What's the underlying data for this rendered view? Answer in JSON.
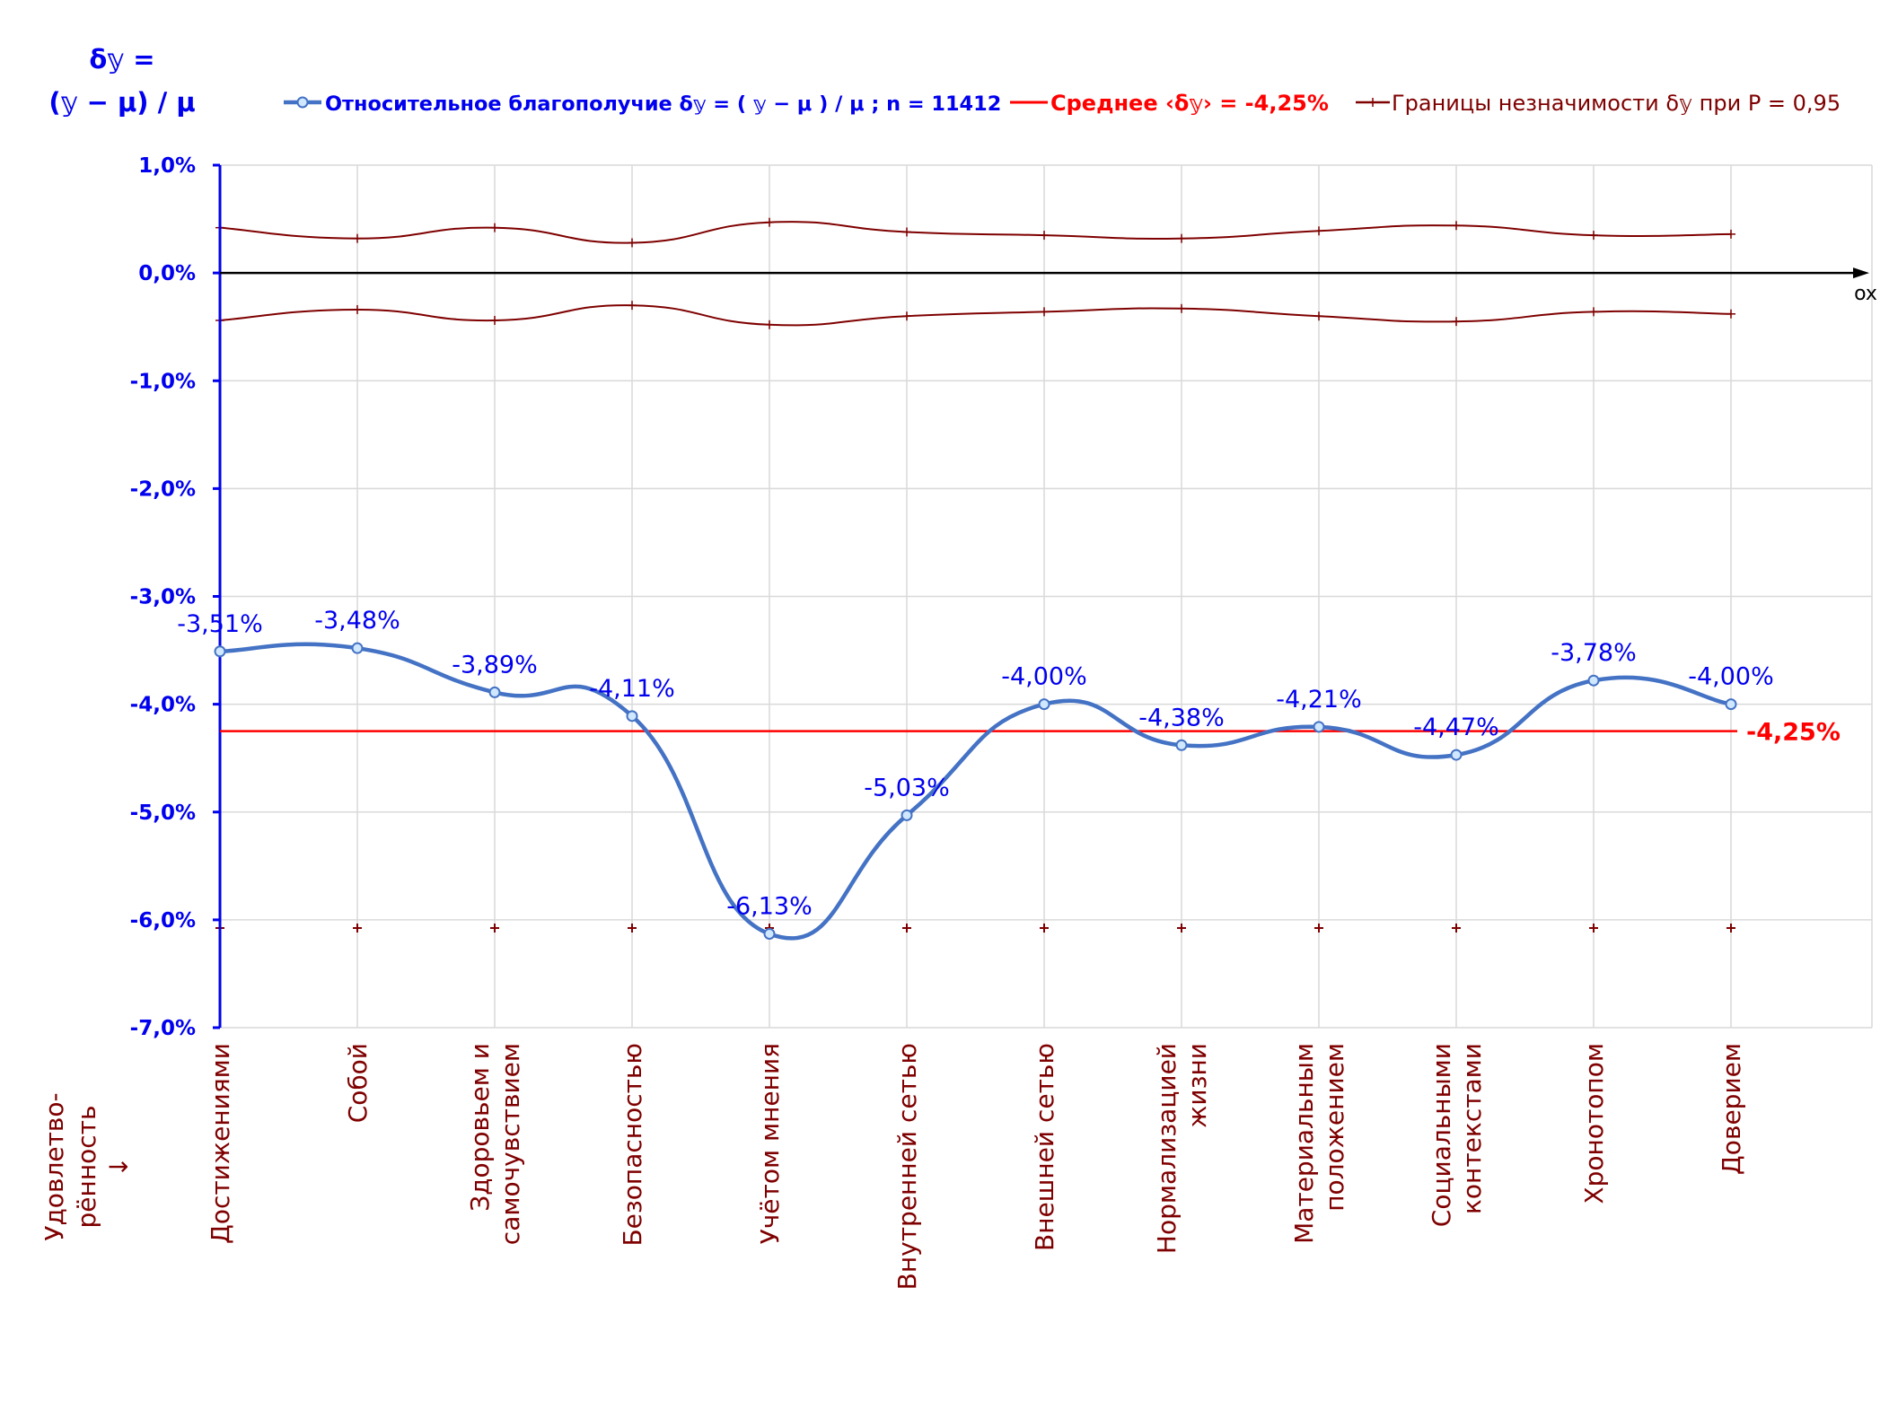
{
  "chart_data": {
    "type": "line",
    "ylabel_line1": "δ𝕪 =",
    "ylabel_line2": "(𝕪 − μ) / μ",
    "xlabel": "Удовлетво-\nрённость\n↓",
    "x_axis_name": "ox",
    "categories": [
      "Достижениями",
      "Собой",
      "Здоровьем и\nсамочувствием",
      "Безопасностью",
      "Учётом мнения",
      "Внутренней сетью",
      "Внешней сетью",
      "Нормализацией\nжизни",
      "Материальным\nположением",
      "Социальными\nконтекстами",
      "Хронотопом",
      "Доверием"
    ],
    "ylim": [
      -7.0,
      1.0
    ],
    "yticks": [
      1.0,
      0.0,
      -1.0,
      -2.0,
      -3.0,
      -4.0,
      -5.0,
      -6.0,
      -7.0
    ],
    "ytick_labels": [
      "1,0%",
      "0,0%",
      "-1,0%",
      "-2,0%",
      "-3,0%",
      "-4,0%",
      "-5,0%",
      "-6,0%",
      "-7,0%"
    ],
    "grid": true,
    "legend_position": "top",
    "series": [
      {
        "name": "Относительное благополучие δ𝕪 = ( 𝕪 − μ ) / μ ; n = 11412",
        "values": [
          -3.51,
          -3.48,
          -3.89,
          -4.11,
          -6.13,
          -5.03,
          -4.0,
          -4.38,
          -4.21,
          -4.47,
          -3.78,
          -4.0
        ],
        "labels": [
          "-3,51%",
          "-3,48%",
          "-3,89%",
          "-4,11%",
          "-6,13%",
          "-5,03%",
          "-4,00%",
          "-4,38%",
          "-4,21%",
          "-4,47%",
          "-3,78%",
          "-4,00%"
        ],
        "color": "#4472c4",
        "label_color": "#0000ee"
      },
      {
        "name": "Среднее ‹δ𝕪› = -4,25%",
        "value": -4.25,
        "label": "-4,25%",
        "color": "#ff0000"
      },
      {
        "name": "Границы незначимости δ𝕪 при P = 0,95",
        "upper": [
          0.42,
          0.32,
          0.42,
          0.28,
          0.47,
          0.38,
          0.35,
          0.32,
          0.39,
          0.44,
          0.35,
          0.36
        ],
        "lower": [
          -0.44,
          -0.34,
          -0.44,
          -0.3,
          -0.48,
          -0.4,
          -0.36,
          -0.33,
          -0.4,
          -0.45,
          -0.36,
          -0.38
        ],
        "color": "#7f0000"
      }
    ]
  },
  "colors": {
    "axis_label_blue": "#0000ee",
    "category_label": "#7f0000",
    "grid": "#d9d9d9",
    "x_axis": "#000000"
  }
}
